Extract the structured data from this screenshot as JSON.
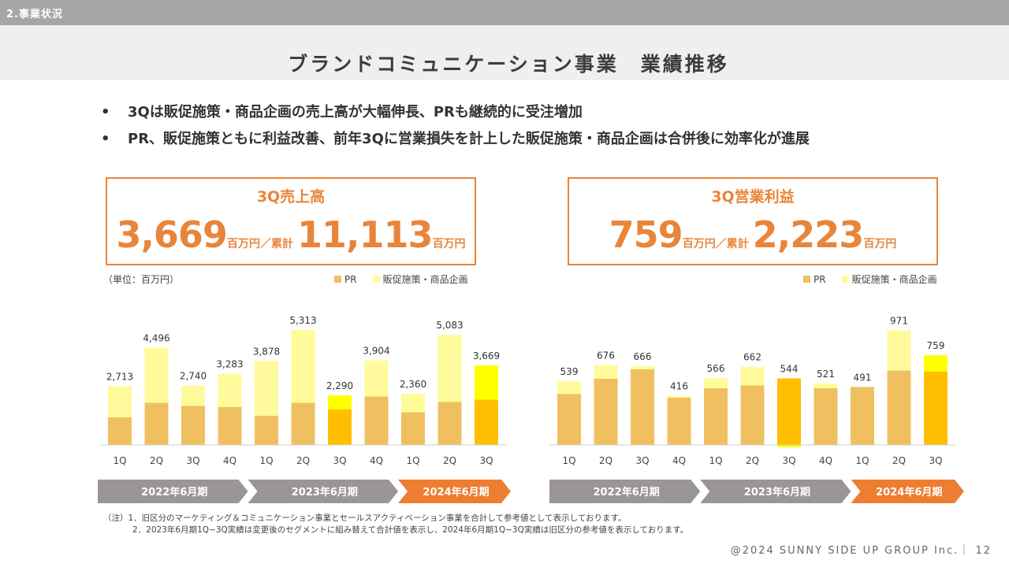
{
  "header": {
    "section_label": "2.事業状況"
  },
  "title": "ブランドコミュニケーション事業　業績推移",
  "bullets": [
    "3Qは販促施策・商品企画の売上高が大幅伸長、PRも継続的に受注増加",
    "PR、販促施策ともに利益改善、前年3Qに営業損失を計上した販促施策・商品企画は合併後に効率化が進展"
  ],
  "kpis": {
    "sales": {
      "label": "3Q売上高",
      "value": "3,669",
      "unit1": "百万円／累計",
      "cumulative": "11,113",
      "unit2": "百万円"
    },
    "profit": {
      "label": "3Q営業利益",
      "value": "759",
      "unit1": "百万円／累計",
      "cumulative": "2,223",
      "unit2": "百万円"
    }
  },
  "unit_note": "（単位：百万円）",
  "legend": {
    "pr": "PR",
    "promo": "販促施策・商品企画"
  },
  "colors": {
    "pr": "#f0c060",
    "promo": "#fffb9c",
    "pr_hl": "#ffbf00",
    "promo_hl": "#ffff00",
    "arrow_gray": "#9b9696",
    "arrow_orange": "#ed7d31"
  },
  "chart_data": [
    {
      "type": "bar",
      "title": "売上高",
      "stacked": true,
      "categories": [
        "1Q",
        "2Q",
        "3Q",
        "4Q",
        "1Q",
        "2Q",
        "3Q",
        "4Q",
        "1Q",
        "2Q",
        "3Q"
      ],
      "series": [
        {
          "name": "PR",
          "values": [
            1280,
            1945,
            1810,
            1750,
            1350,
            1945,
            1650,
            2240,
            1510,
            1990,
            2090
          ]
        },
        {
          "name": "販促施策・商品企画",
          "values": [
            1433,
            2551,
            930,
            1533,
            2528,
            3368,
            640,
            1664,
            850,
            3093,
            1579
          ]
        }
      ],
      "totals": [
        2713,
        4496,
        2740,
        3283,
        3878,
        5313,
        2290,
        3904,
        2360,
        5083,
        3669
      ],
      "total_labels": [
        "2,713",
        "4,496",
        "2,740",
        "3,283",
        "3,878",
        "5,313",
        "2,290",
        "3,904",
        "2,360",
        "5,083",
        "3,669"
      ],
      "highlight_indices": [
        6,
        10
      ],
      "ylim": [
        0,
        6000
      ],
      "periods": [
        {
          "label": "2022年6月期",
          "count": 4,
          "accent": false
        },
        {
          "label": "2023年6月期",
          "count": 4,
          "accent": false
        },
        {
          "label": "2024年6月期",
          "count": 3,
          "accent": true
        }
      ]
    },
    {
      "type": "bar",
      "title": "営業利益",
      "stacked": true,
      "categories": [
        "1Q",
        "2Q",
        "3Q",
        "4Q",
        "1Q",
        "2Q",
        "3Q",
        "4Q",
        "1Q",
        "2Q",
        "3Q"
      ],
      "series": [
        {
          "name": "PR",
          "values": [
            430,
            560,
            640,
            400,
            480,
            505,
            564,
            480,
            491,
            630,
            622
          ]
        },
        {
          "name": "販促施策・商品企画",
          "values": [
            109,
            116,
            26,
            16,
            86,
            157,
            -20,
            41,
            0,
            341,
            137
          ]
        }
      ],
      "totals": [
        539,
        676,
        666,
        416,
        566,
        662,
        544,
        521,
        491,
        971,
        759
      ],
      "total_labels": [
        "539",
        "676",
        "666",
        "416",
        "566",
        "662",
        "544",
        "521",
        "491",
        "971",
        "759"
      ],
      "highlight_indices": [
        6,
        10
      ],
      "ylim": [
        0,
        1100
      ],
      "periods": [
        {
          "label": "2022年6月期",
          "count": 4,
          "accent": false
        },
        {
          "label": "2023年6月期",
          "count": 4,
          "accent": false
        },
        {
          "label": "2024年6月期",
          "count": 3,
          "accent": true
        }
      ]
    }
  ],
  "footnotes": [
    "（注）1．旧区分のマーケティング＆コミュニケーション事業とセールスアクティベーション事業を合計して参考値として表示しております。",
    "2．2023年6月期1Q~3Q実績は変更後のセグメントに組み替えて合計値を表示し、2024年6月期1Q~3Q実績は旧区分の参考値を表示しております。"
  ],
  "copyright": "@2024 SUNNY SIDE UP GROUP Inc.｜ 12"
}
